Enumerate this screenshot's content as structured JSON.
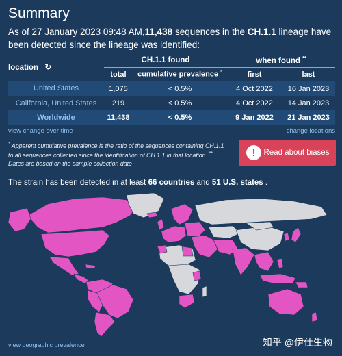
{
  "title": "Summary",
  "intro": {
    "prefix": "As of 27 January 2023 09:48 AM,",
    "count": "11,438",
    "middle": " sequences in the ",
    "lineage": "CH.1.1",
    "suffix": " lineage have been detected since the lineage was identified:"
  },
  "table": {
    "location_header": "location",
    "refresh_icon": "refresh-icon",
    "group_found": "CH.1.1 found",
    "group_when": "when found",
    "group_when_sup": "**",
    "col_total": "total",
    "col_prevalence": "cumulative prevalence",
    "col_prevalence_sup": "*",
    "col_first": "first",
    "col_last": "last",
    "rows": [
      {
        "location": "United States",
        "total": "1,075",
        "prevalence": "< 0.5%",
        "first": "4 Oct 2022",
        "last": "16 Jan 2023"
      },
      {
        "location": "California, United States",
        "total": "219",
        "prevalence": "< 0.5%",
        "first": "4 Oct 2022",
        "last": "14 Jan 2023"
      },
      {
        "location": "Worldwide",
        "total": "11,438",
        "prevalence": "< 0.5%",
        "first": "9 Jan 2022",
        "last": "21 Jan 2023"
      }
    ]
  },
  "links": {
    "view_change": "view change over time",
    "change_locations": "change locations",
    "geo_prevalence": "view geographic prevalence"
  },
  "footnote": {
    "star": "*",
    "text1": "Apparent cumulative prevalence is the ratio of the sequences containing CH.1.1 to all sequences collected since the identification of CH.1.1 in that location.",
    "star2": "**",
    "text2": "Dates are based on the sample collection date"
  },
  "bias_button": {
    "icon": "!",
    "label": "Read about biases"
  },
  "strain": {
    "prefix": "The strain has been detected in at least ",
    "countries": "66 countries",
    "and": " and ",
    "states": "51 U.S. states",
    "suffix": " ."
  },
  "watermark": "知乎 @伊仕生物",
  "colors": {
    "background": "#1b3a5c",
    "highlight_row": "#224a76",
    "link": "#8ec0f2",
    "detected": "#e455c4",
    "not_detected": "#d6d8dc",
    "button": "#d9435a"
  }
}
